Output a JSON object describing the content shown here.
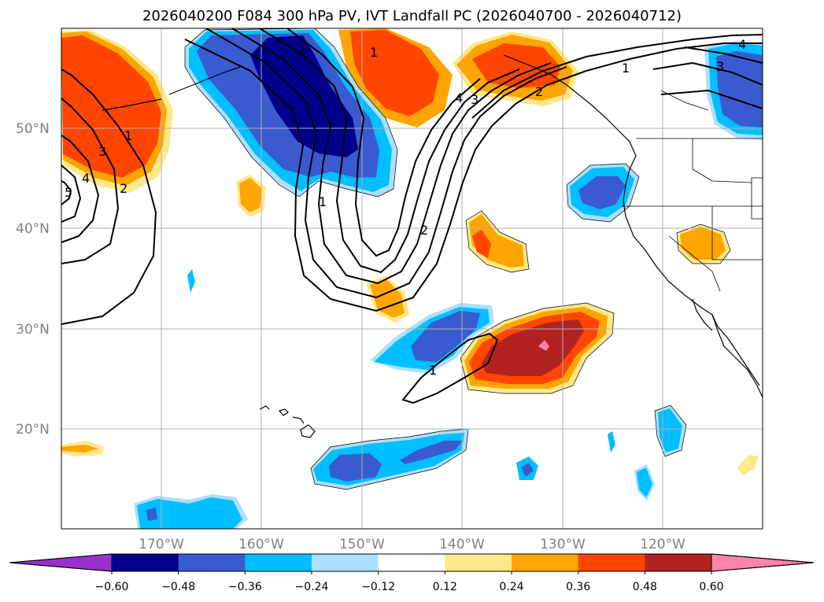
{
  "title": "2026040200 F084 300 hPa PV, IVT Landfall PC (2026040700 - 2026040712)",
  "lat_labels": [
    "50°N",
    "40°N",
    "30°N",
    "20°N"
  ],
  "lon_labels": [
    "170°W",
    "160°W",
    "150°W",
    "140°W",
    "130°W",
    "120°W"
  ],
  "colorbar": {
    "ticks": [
      "−0.60",
      "−0.48",
      "−0.36",
      "−0.24",
      "−0.12",
      "0.12",
      "0.24",
      "0.36",
      "0.48",
      "0.60"
    ],
    "colors": [
      "#9932CC",
      "#00008B",
      "#3A5BD0",
      "#00BFFF",
      "#ADDFFF",
      "#FFFFFF",
      "#FFE88A",
      "#FFA500",
      "#FF4500",
      "#B22222",
      "#FF85A8"
    ]
  },
  "contour_labels": [
    "1",
    "2",
    "3",
    "4",
    "5",
    "1",
    "3",
    "2",
    "1",
    "3",
    "4",
    "1",
    "2",
    "1",
    "3",
    "4"
  ]
}
